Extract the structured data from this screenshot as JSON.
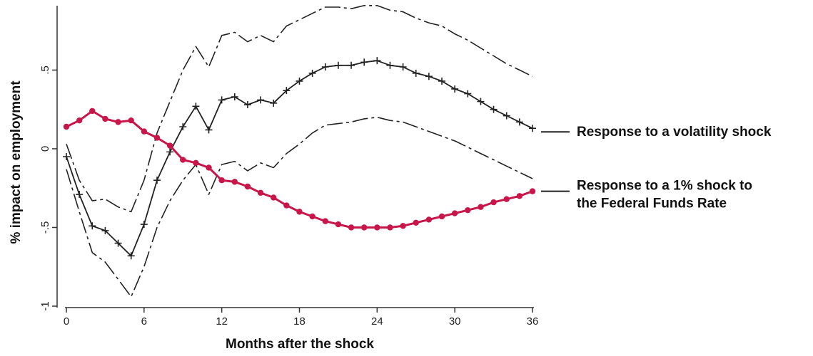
{
  "chart_data": {
    "type": "line",
    "xlabel": "Months after the shock",
    "ylabel": "% impact on employment",
    "xlim": [
      0,
      36
    ],
    "ylim": [
      -1,
      0.9
    ],
    "x_ticks": [
      0,
      6,
      12,
      18,
      24,
      30,
      36
    ],
    "x_tick_labels": [
      "0",
      "6",
      "12",
      "18",
      "24",
      "30",
      "36"
    ],
    "y_ticks": [
      -1,
      -0.5,
      0,
      0.5
    ],
    "y_tick_labels": [
      "-1",
      "-.5",
      "0",
      ".5"
    ],
    "grid": false,
    "x": [
      0,
      1,
      2,
      3,
      4,
      5,
      6,
      7,
      8,
      9,
      10,
      11,
      12,
      13,
      14,
      15,
      16,
      17,
      18,
      19,
      20,
      21,
      22,
      23,
      24,
      25,
      26,
      27,
      28,
      29,
      30,
      31,
      32,
      33,
      34,
      35,
      36
    ],
    "series": [
      {
        "key": "volatility",
        "values": [
          -0.05,
          -0.29,
          -0.49,
          -0.52,
          -0.6,
          -0.68,
          -0.48,
          -0.2,
          -0.02,
          0.14,
          0.27,
          0.12,
          0.31,
          0.33,
          0.28,
          0.31,
          0.29,
          0.37,
          0.43,
          0.48,
          0.52,
          0.53,
          0.53,
          0.55,
          0.56,
          0.53,
          0.52,
          0.48,
          0.46,
          0.43,
          0.38,
          0.35,
          0.3,
          0.25,
          0.21,
          0.17,
          0.13
        ],
        "color": "#222222",
        "style": "solid-with-plus-markers"
      },
      {
        "key": "volatility_upper_band",
        "values": [
          0.03,
          -0.2,
          -0.33,
          -0.32,
          -0.37,
          -0.4,
          -0.2,
          0.1,
          0.3,
          0.5,
          0.65,
          0.52,
          0.72,
          0.74,
          0.68,
          0.72,
          0.68,
          0.78,
          0.82,
          0.86,
          0.9,
          0.9,
          0.89,
          0.91,
          0.91,
          0.88,
          0.87,
          0.83,
          0.8,
          0.78,
          0.73,
          0.69,
          0.64,
          0.59,
          0.54,
          0.5,
          0.46
        ],
        "color": "#222222",
        "style": "long-dash"
      },
      {
        "key": "volatility_lower_band",
        "values": [
          -0.13,
          -0.4,
          -0.66,
          -0.72,
          -0.83,
          -0.94,
          -0.75,
          -0.5,
          -0.33,
          -0.2,
          -0.1,
          -0.29,
          -0.1,
          -0.08,
          -0.14,
          -0.09,
          -0.12,
          -0.03,
          0.03,
          0.1,
          0.15,
          0.16,
          0.17,
          0.19,
          0.2,
          0.18,
          0.17,
          0.14,
          0.11,
          0.08,
          0.05,
          0.01,
          -0.03,
          -0.07,
          -0.11,
          -0.15,
          -0.19
        ],
        "color": "#222222",
        "style": "long-dash"
      },
      {
        "key": "fed_funds",
        "values": [
          0.14,
          0.18,
          0.24,
          0.19,
          0.17,
          0.18,
          0.11,
          0.07,
          0.02,
          -0.07,
          -0.09,
          -0.12,
          -0.2,
          -0.21,
          -0.24,
          -0.28,
          -0.31,
          -0.36,
          -0.4,
          -0.43,
          -0.46,
          -0.48,
          -0.5,
          -0.5,
          -0.5,
          -0.5,
          -0.49,
          -0.47,
          -0.45,
          -0.43,
          -0.41,
          -0.39,
          -0.37,
          -0.34,
          -0.32,
          -0.3,
          -0.27
        ],
        "color": "#c8164a",
        "style": "solid-with-dot-markers"
      }
    ],
    "annotations": [
      {
        "key": "volatility",
        "lines": [
          "Response to a volatility shock"
        ]
      },
      {
        "key": "fed_funds",
        "lines": [
          "Response to a 1% shock to",
          "the Federal Funds Rate"
        ]
      }
    ]
  }
}
